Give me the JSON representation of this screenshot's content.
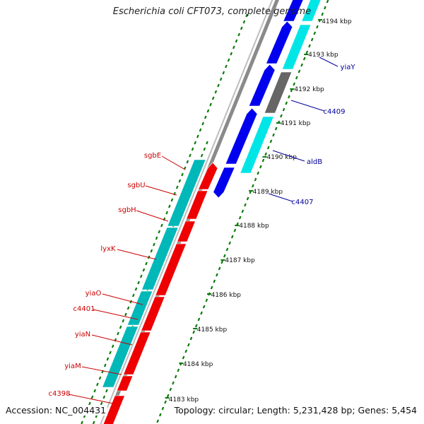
{
  "title": "Escherichia coli CFT073, complete genome",
  "accession_text": "Accession: NC_004431",
  "topology_text": "Topology: circular; Length: 5,231,428 bp; Genes: 5,454",
  "colors": {
    "backbone": "#8a8a8a",
    "dots": "#0a7a0a",
    "forward_label": "#000099",
    "reverse_label": "#cc0000",
    "blue_gene": "#0000ee",
    "cyan_gene": "#00e5e5",
    "gray_gene": "#666666",
    "red_gene": "#ee0000",
    "teal_gene": "#00b8b8"
  },
  "scale_ticks": [
    "4194 kbp",
    "4193 kbp",
    "4192 kbp",
    "4191 kbp",
    "4190 kbp",
    "4189 kbp",
    "4188 kbp",
    "4187 kbp",
    "4186 kbp",
    "4185 kbp",
    "4184 kbp",
    "4183 kbp"
  ],
  "forward_genes": [
    {
      "label": "yiaY"
    },
    {
      "label": "c4409"
    },
    {
      "label": "aldB"
    },
    {
      "label": "c4407"
    }
  ],
  "reverse_genes": [
    {
      "label": "sgbE"
    },
    {
      "label": "sgbU"
    },
    {
      "label": "sgbH"
    },
    {
      "label": "lyxK"
    },
    {
      "label": "yiaO"
    },
    {
      "label": "c4401"
    },
    {
      "label": "yiaN"
    },
    {
      "label": "yiaM"
    },
    {
      "label": "c4398"
    }
  ]
}
